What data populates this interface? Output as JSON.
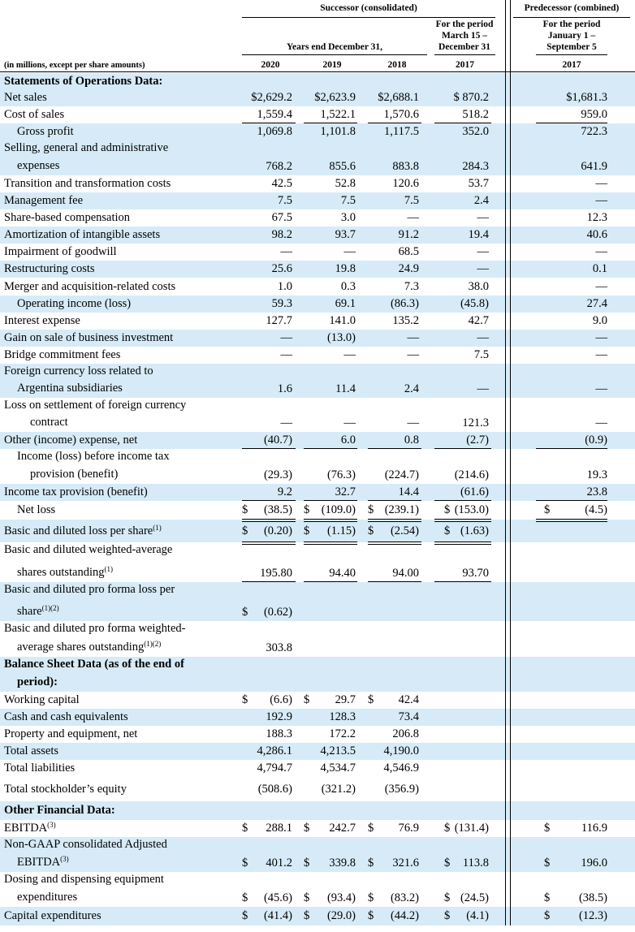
{
  "header": {
    "successor": "Successor (consolidated)",
    "predecessor": "Predecessor (combined)",
    "years_end": "Years end December 31,",
    "period_successor": [
      "For the period",
      "March 15 –",
      "December 31"
    ],
    "period_predecessor": [
      "For the period",
      "January 1 –",
      "September 5"
    ],
    "units": "(in millions, except per share amounts)",
    "years": [
      "2020",
      "2019",
      "2018",
      "2017",
      "2017"
    ]
  },
  "rows": [
    {
      "label": "Statements of Operations Data:",
      "bold": true,
      "values": [
        "",
        "",
        "",
        "",
        ""
      ]
    },
    {
      "label": "Net sales",
      "values": [
        "$2,629.2",
        "$2,623.9",
        "$2,688.1",
        "$ 870.2",
        "$1,681.3"
      ]
    },
    {
      "label": "Cost of sales",
      "values": [
        "1,559.4",
        "1,522.1",
        "1,570.6",
        "518.2",
        "959.0"
      ]
    },
    {
      "label": "Gross profit",
      "indent": 1,
      "values": [
        "1,069.8",
        "1,101.8",
        "1,117.5",
        "352.0",
        "722.3"
      ]
    },
    {
      "label": "Selling, general and administrative",
      "label2": "expenses",
      "indent2": 1,
      "values": [
        "768.2",
        "855.6",
        "883.8",
        "284.3",
        "641.9"
      ]
    },
    {
      "label": "Transition and transformation costs",
      "values": [
        "42.5",
        "52.8",
        "120.6",
        "53.7",
        "—"
      ]
    },
    {
      "label": "Management fee",
      "values": [
        "7.5",
        "7.5",
        "7.5",
        "2.4",
        "—"
      ]
    },
    {
      "label": "Share-based compensation",
      "values": [
        "67.5",
        "3.0",
        "—",
        "—",
        "12.3"
      ]
    },
    {
      "label": "Amortization of intangible assets",
      "values": [
        "98.2",
        "93.7",
        "91.2",
        "19.4",
        "40.6"
      ]
    },
    {
      "label": "Impairment of goodwill",
      "values": [
        "—",
        "—",
        "68.5",
        "—",
        "—"
      ]
    },
    {
      "label": "Restructuring costs",
      "values": [
        "25.6",
        "19.8",
        "24.9",
        "—",
        "0.1"
      ]
    },
    {
      "label": "Merger and acquisition-related costs",
      "values": [
        "1.0",
        "0.3",
        "7.3",
        "38.0",
        "—"
      ]
    },
    {
      "label": "Operating income (loss)",
      "indent": 1,
      "values": [
        "59.3",
        "69.1",
        "(86.3)",
        "(45.8)",
        "27.4"
      ]
    },
    {
      "label": "Interest expense",
      "values": [
        "127.7",
        "141.0",
        "135.2",
        "42.7",
        "9.0"
      ]
    },
    {
      "label": "Gain on sale of business investment",
      "values": [
        "—",
        "(13.0)",
        "—",
        "—",
        "—"
      ]
    },
    {
      "label": "Bridge commitment fees",
      "values": [
        "—",
        "—",
        "—",
        "7.5",
        "—"
      ]
    },
    {
      "label": "Foreign currency loss related to",
      "label2": "Argentina subsidiaries",
      "indent2": 1,
      "values": [
        "1.6",
        "11.4",
        "2.4",
        "—",
        "—"
      ]
    },
    {
      "label": "Loss on settlement of foreign currency",
      "label2": "contract",
      "indent2": 2,
      "values": [
        "—",
        "—",
        "—",
        "121.3",
        "—"
      ]
    },
    {
      "label": "Other (income) expense, net",
      "values": [
        "(40.7)",
        "6.0",
        "0.8",
        "(2.7)",
        "(0.9)"
      ]
    },
    {
      "label": "Income (loss) before income tax",
      "indent": 1,
      "label2": "provision (benefit)",
      "indent2": 2,
      "values": [
        "(29.3)",
        "(76.3)",
        "(224.7)",
        "(214.6)",
        "19.3"
      ]
    },
    {
      "label": "Income tax provision (benefit)",
      "values": [
        "9.2",
        "32.7",
        "14.4",
        "(61.6)",
        "23.8"
      ]
    },
    {
      "label": "Net loss",
      "indent": 1,
      "values": [
        "(38.5)",
        "(109.0)",
        "(239.1)",
        "(153.0)",
        "(4.5)"
      ],
      "dollars": [
        "$",
        "$",
        "$",
        "$",
        "$"
      ]
    },
    {
      "label": "Basic and diluted loss per share",
      "sup": "(1)",
      "values": [
        "(0.20)",
        "(1.15)",
        "(2.54)",
        "(1.63)",
        ""
      ],
      "dollars": [
        "$",
        "$",
        "$",
        "$",
        ""
      ]
    },
    {
      "label": "Basic and diluted weighted-average",
      "label2": "shares outstanding",
      "sup2": "(1)",
      "indent2": 1,
      "values": [
        "195.80",
        "94.40",
        "94.00",
        "93.70",
        ""
      ]
    },
    {
      "label": "Basic and diluted pro forma loss per",
      "label2": "share",
      "sup2": "(1)(2)",
      "indent2": 1,
      "values": [
        "(0.62)",
        "",
        "",
        "",
        ""
      ],
      "dollars": [
        "$",
        "",
        "",
        "",
        ""
      ]
    },
    {
      "label": "Basic and diluted pro forma weighted-",
      "label2": "average shares outstanding",
      "sup2": "(1)(2)",
      "indent2": 1,
      "values": [
        "303.8",
        "",
        "",
        "",
        ""
      ]
    },
    {
      "label": "Balance Sheet Data (as of the end of",
      "label2": "period):",
      "bold": true,
      "indent2": 1,
      "values": [
        "",
        "",
        "",
        "",
        ""
      ]
    },
    {
      "label": "Working capital",
      "values": [
        "(6.6)",
        "29.7",
        "42.4",
        "",
        ""
      ],
      "dollars": [
        "$",
        "$",
        "$",
        "",
        ""
      ]
    },
    {
      "label": "Cash and cash equivalents",
      "values": [
        "192.9",
        "128.3",
        "73.4",
        "",
        ""
      ]
    },
    {
      "label": "Property and equipment, net",
      "values": [
        "188.3",
        "172.2",
        "206.8",
        "",
        ""
      ]
    },
    {
      "label": "Total assets",
      "values": [
        "4,286.1",
        "4,213.5",
        "4,190.0",
        "",
        ""
      ]
    },
    {
      "label": "Total liabilities",
      "values": [
        "4,794.7",
        "4,534.7",
        "4,546.9",
        "",
        ""
      ]
    },
    {
      "label": "Total stockholder’s equity",
      "values": [
        "(508.6)",
        "(321.2)",
        "(356.9)",
        "",
        ""
      ]
    },
    {
      "label": "Other Financial Data:",
      "bold": true,
      "values": [
        "",
        "",
        "",
        "",
        ""
      ]
    },
    {
      "label": "EBITDA",
      "sup": "(3)",
      "values": [
        "288.1",
        "242.7",
        "76.9",
        "(131.4)",
        "116.9"
      ],
      "dollars": [
        "$",
        "$",
        "$",
        "$",
        "$"
      ]
    },
    {
      "label": "Non-GAAP consolidated Adjusted",
      "label2": "EBITDA",
      "sup2": "(3)",
      "indent2": 1,
      "values": [
        "401.2",
        "339.8",
        "321.6",
        "113.8",
        "196.0"
      ],
      "dollars": [
        "$",
        "$",
        "$",
        "$",
        "$"
      ]
    },
    {
      "label": "Dosing and dispensing equipment",
      "label2": "expenditures",
      "indent2": 1,
      "values": [
        "(45.6)",
        "(93.4)",
        "(83.2)",
        "(24.5)",
        "(38.5)"
      ],
      "dollars": [
        "$",
        "$",
        "$",
        "$",
        "$"
      ]
    },
    {
      "label": "Capital expenditures",
      "values": [
        "(41.4)",
        "(29.0)",
        "(44.2)",
        "(4.1)",
        "(12.3)"
      ],
      "dollars": [
        "$",
        "$",
        "$",
        "$",
        "$"
      ]
    }
  ]
}
